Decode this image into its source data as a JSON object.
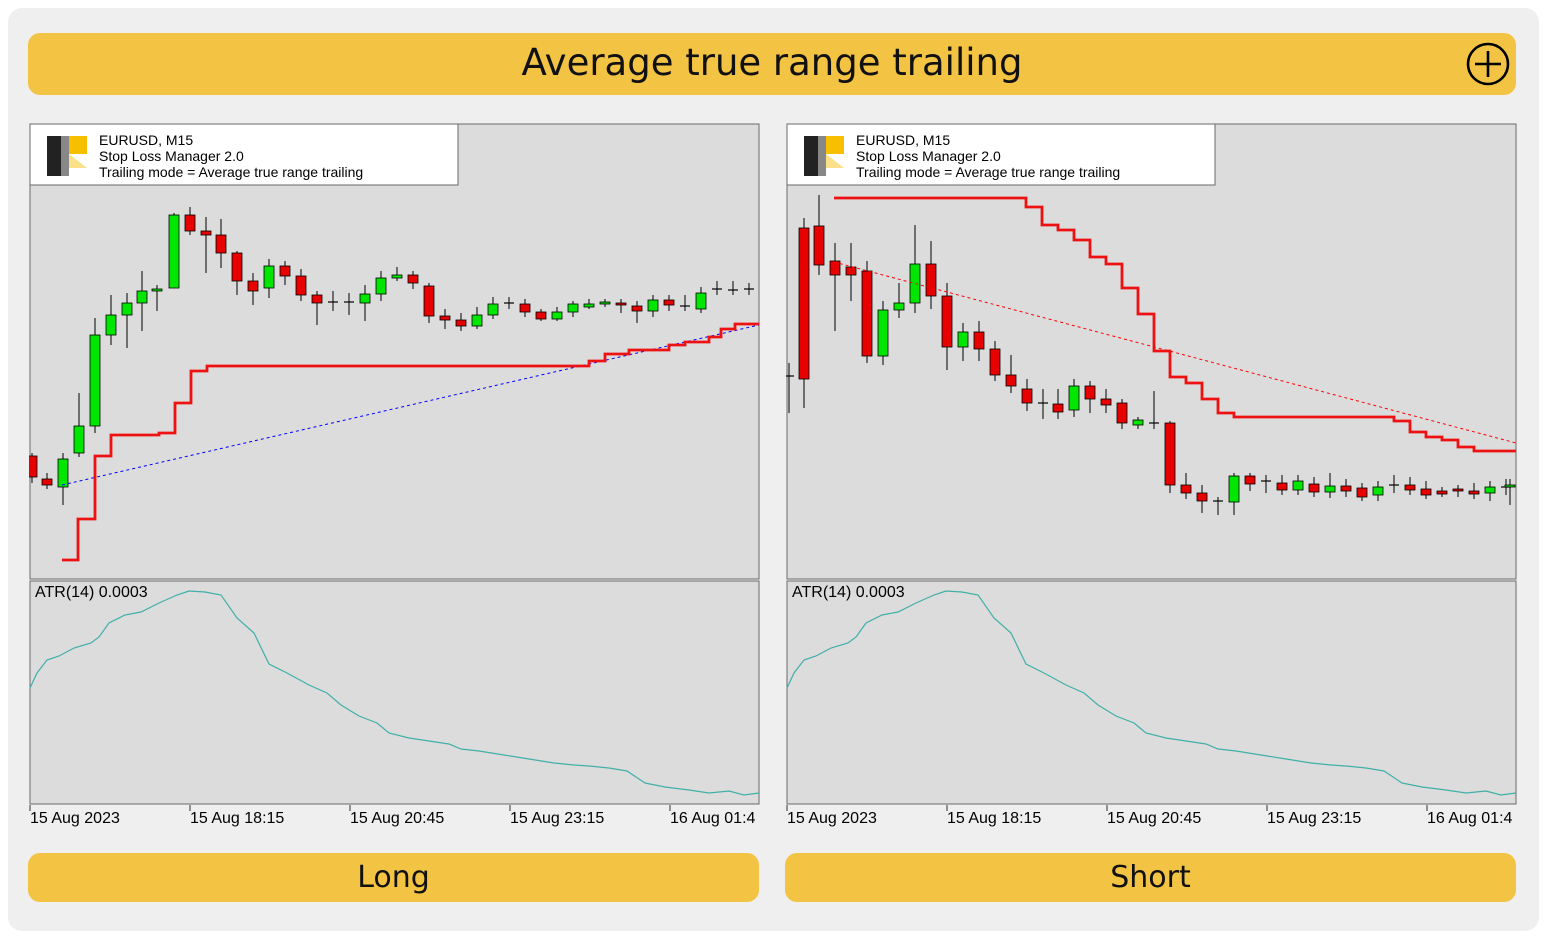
{
  "header": {
    "title": "Average true range trailing",
    "expand_icon": "plus-circle-icon"
  },
  "panels": [
    {
      "id": "long",
      "direction": "long",
      "info": {
        "symbol": "EURUSD, M15",
        "expert": "Stop Loss Manager 2.0",
        "mode": "Trailing mode = Average true range trailing",
        "logo_icon": "expert-logo-icon"
      },
      "indicator_label": "ATR(14) 0.0003",
      "time_labels": [
        "15 Aug 2023",
        "15 Aug 18:15",
        "15 Aug 20:45",
        "15 Aug 23:15",
        "16 Aug 01:4"
      ],
      "button_label": "Long"
    },
    {
      "id": "short",
      "direction": "short",
      "info": {
        "symbol": "EURUSD, M15",
        "expert": "Stop Loss Manager 2.0",
        "mode": "Trailing mode = Average true range trailing",
        "logo_icon": "expert-logo-icon"
      },
      "indicator_label": "ATR(14) 0.0003",
      "time_labels": [
        "15 Aug 2023",
        "15 Aug 18:15",
        "15 Aug 20:45",
        "15 Aug 23:15",
        "16 Aug 01:4"
      ],
      "button_label": "Short"
    }
  ],
  "colors": {
    "accent": "#f3c343",
    "chart_bg": "#dcdcdc",
    "bull_candle": "#00e600",
    "bear_candle": "#e60000",
    "stop_line": "#ee1111",
    "trend_long": "#0000ff",
    "trend_short": "#ff0000",
    "atr_line": "#40b0a8"
  }
}
